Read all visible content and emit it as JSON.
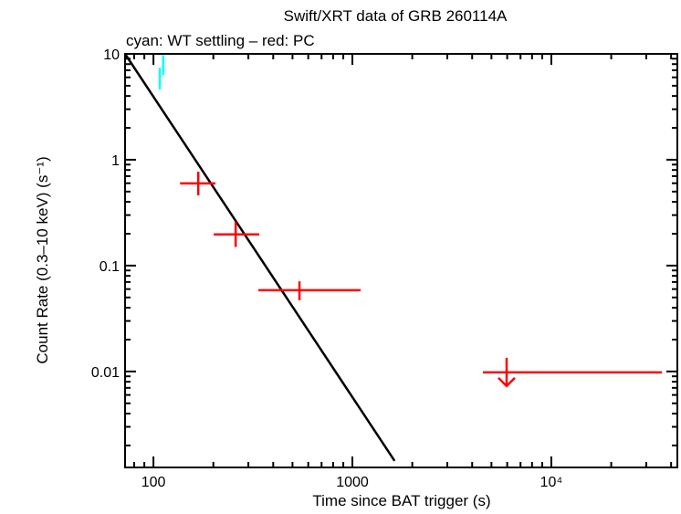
{
  "chart_data": {
    "type": "scatter",
    "title": "Swift/XRT data of GRB 260114A",
    "subtitle": "cyan: WT settling – red: PC",
    "xlabel": "Time since BAT trigger (s)",
    "ylabel": "Count Rate (0.3–10 keV) (s⁻¹)",
    "x_scale": "log",
    "y_scale": "log",
    "xlim": [
      72,
      43000
    ],
    "ylim": [
      0.00124,
      10
    ],
    "grid": false,
    "x_ticks": [
      {
        "v": 100,
        "label": "100"
      },
      {
        "v": 1000,
        "label": "1000"
      },
      {
        "v": 10000,
        "label": "10⁴"
      }
    ],
    "y_ticks": [
      {
        "v": 10,
        "label": "10"
      },
      {
        "v": 1,
        "label": "1"
      },
      {
        "v": 0.1,
        "label": "0.1"
      },
      {
        "v": 0.01,
        "label": "0.01"
      }
    ],
    "series": [
      {
        "color": "#00ffff",
        "points": [
          {
            "x": 107.6,
            "y": 5.85,
            "xlo": 107,
            "xhi": 108.3,
            "ylo": 4.6,
            "yhi": 7.4
          },
          {
            "x": 112,
            "y": 7.88,
            "xlo": 111.3,
            "xhi": 112.7,
            "ylo": 6.3,
            "yhi": 9.7
          }
        ]
      },
      {
        "color": "#ff0000",
        "points": [
          {
            "x": 168,
            "y": 0.597,
            "xlo": 136,
            "xhi": 205,
            "ylo": 0.46,
            "yhi": 0.77
          },
          {
            "x": 259,
            "y": 0.197,
            "xlo": 201,
            "xhi": 340,
            "ylo": 0.15,
            "yhi": 0.26
          },
          {
            "x": 542,
            "y": 0.0585,
            "xlo": 337,
            "xhi": 1100,
            "ylo": 0.047,
            "yhi": 0.071
          }
        ]
      },
      {
        "color": "#ff0000",
        "upper_limits": [
          {
            "x": 5960,
            "y": 0.0098,
            "xlo": 4530,
            "xhi": 36000
          }
        ]
      }
    ],
    "model_line": {
      "color": "#000000",
      "points": [
        [
          72,
          10
        ],
        [
          1630,
          0.00143
        ]
      ]
    }
  }
}
